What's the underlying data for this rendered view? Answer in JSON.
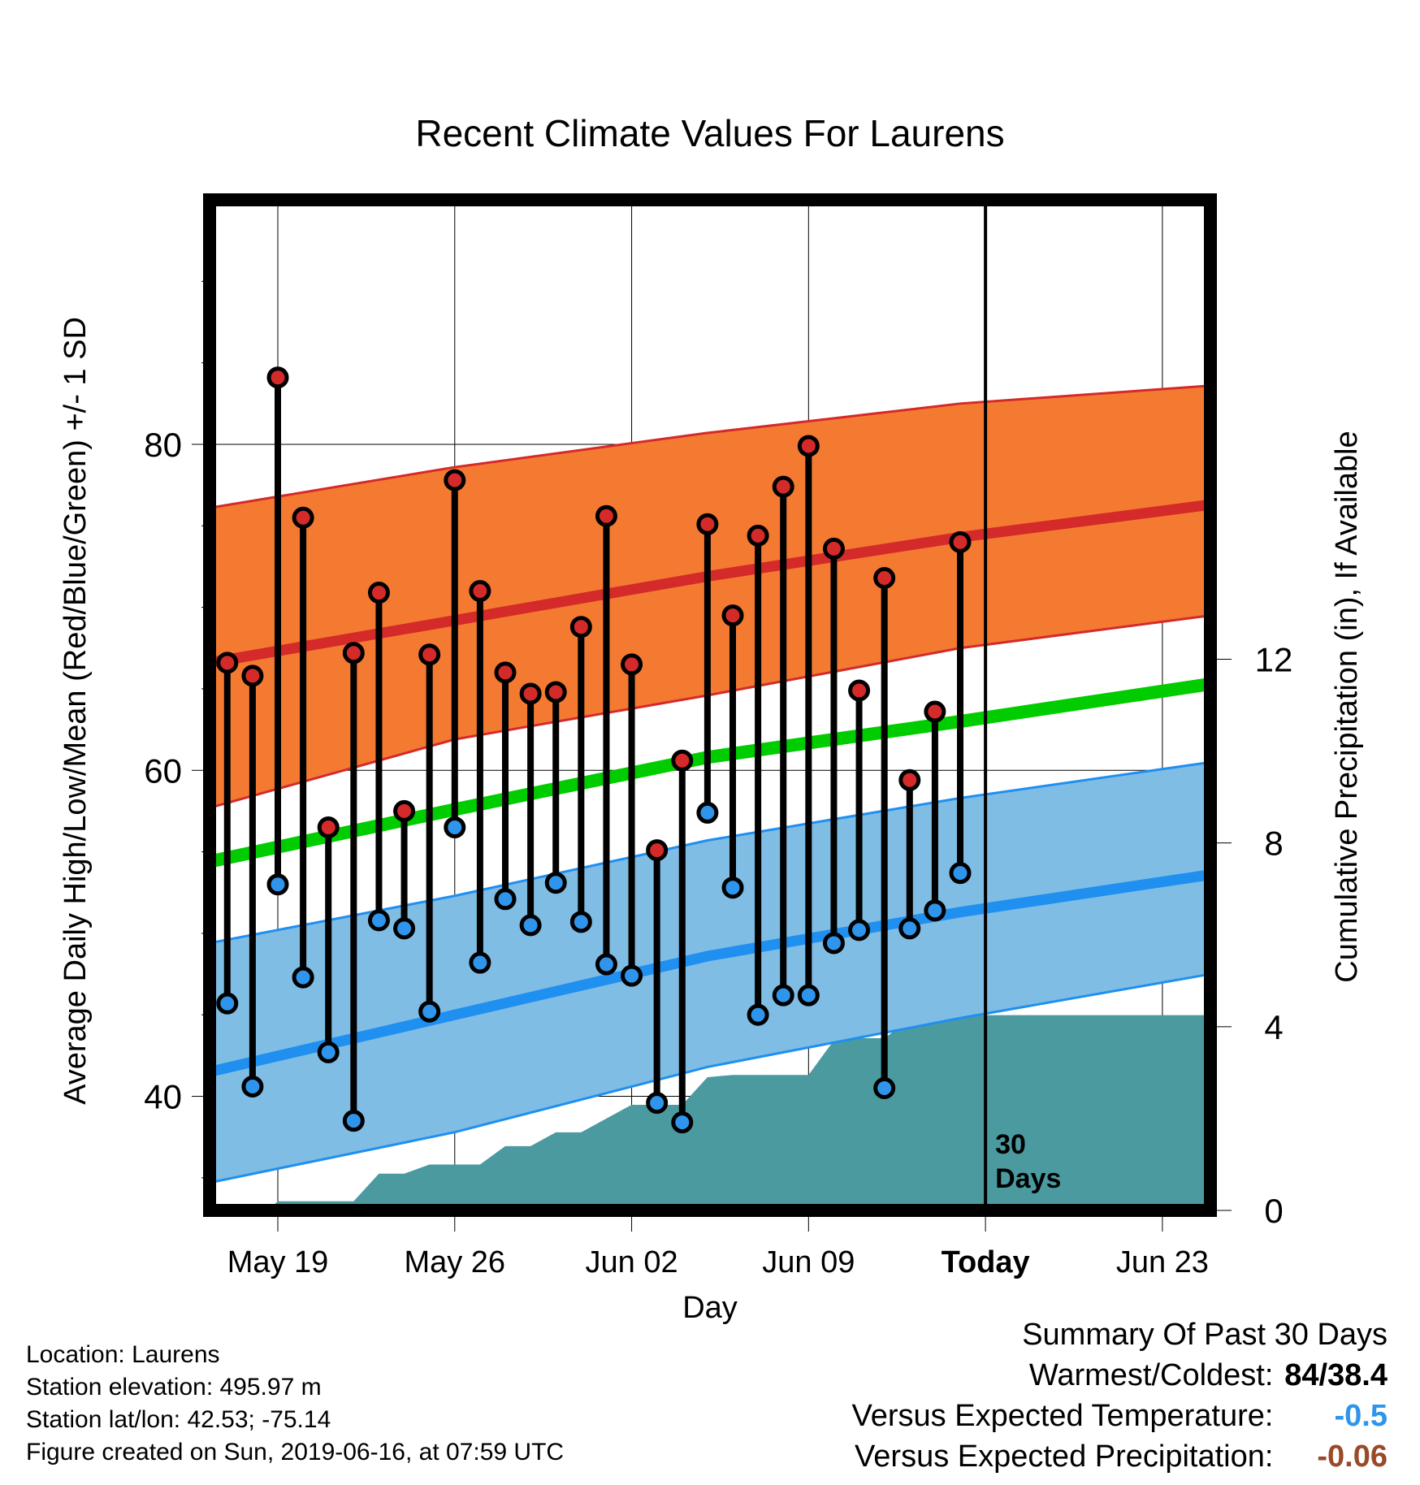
{
  "chart_data": {
    "type": "line",
    "title": "Recent Climate Values For Laurens",
    "xlabel": "Day",
    "ylabel_left": "Average Daily High/Low/Mean (Red/Blue/Green) +/- 1 SD",
    "ylabel_right": "Cumulative Precipitation (in), If Available",
    "x_ticks": [
      {
        "day": 2,
        "label": "May 19"
      },
      {
        "day": 9,
        "label": "May 26"
      },
      {
        "day": 16,
        "label": "Jun 02"
      },
      {
        "day": 23,
        "label": "Jun 09"
      },
      {
        "day": 30,
        "label": "Today"
      },
      {
        "day": 37,
        "label": "Jun 23"
      }
    ],
    "x_range_days": [
      -0.7,
      38.9
    ],
    "x_day_origin": "May 17",
    "ylim_temp": [
      33,
      95
    ],
    "y_ticks_temp": [
      40,
      60,
      80
    ],
    "ylim_precip": [
      0,
      22
    ],
    "y_ticks_precip": [
      0,
      4,
      8,
      12
    ],
    "today_line_day": 30,
    "today_annotation": [
      "30",
      "Days"
    ],
    "daily_obs": {
      "days": [
        0,
        1,
        2,
        3,
        4,
        5,
        6,
        7,
        8,
        9,
        10,
        11,
        12,
        13,
        14,
        15,
        16,
        17,
        18,
        19,
        20,
        21,
        22,
        23,
        24,
        25,
        26,
        27,
        28,
        29
      ],
      "high": [
        66.6,
        65.8,
        84.1,
        75.5,
        56.5,
        67.2,
        70.9,
        57.5,
        67.1,
        77.8,
        71.0,
        66.0,
        64.7,
        64.8,
        68.8,
        75.6,
        66.5,
        55.1,
        60.6,
        75.1,
        69.5,
        74.4,
        77.4,
        79.9,
        73.6,
        64.9,
        71.8,
        59.4,
        63.6,
        74.0
      ],
      "low": [
        45.7,
        40.6,
        53.0,
        47.3,
        42.7,
        38.5,
        50.8,
        50.3,
        45.2,
        56.5,
        48.2,
        52.1,
        50.5,
        53.1,
        50.7,
        48.1,
        47.4,
        39.6,
        38.4,
        57.4,
        52.8,
        45.0,
        46.2,
        46.2,
        49.4,
        50.2,
        40.5,
        50.3,
        51.4,
        53.7
      ]
    },
    "normals": {
      "days": [
        -0.7,
        9,
        19,
        29,
        38.9
      ],
      "high_mean": [
        66.6,
        69.2,
        71.9,
        74.3,
        76.3
      ],
      "high_sd_upper": [
        76.1,
        78.6,
        80.7,
        82.5,
        83.6
      ],
      "high_sd_lower": [
        57.7,
        61.9,
        64.6,
        67.5,
        69.5
      ],
      "low_mean": [
        41.5,
        45.0,
        48.6,
        51.3,
        53.6
      ],
      "low_sd_upper": [
        49.4,
        52.3,
        55.7,
        58.3,
        60.5
      ],
      "low_sd_lower": [
        34.7,
        37.8,
        41.8,
        44.8,
        47.5
      ],
      "mean": [
        54.4,
        57.6,
        60.8,
        63.0,
        65.3
      ]
    },
    "precip_cumulative": {
      "days": [
        -0.7,
        1.6,
        2.0,
        3.5,
        4.0,
        5.0,
        6.0,
        7.0,
        8.0,
        9.0,
        10.0,
        11.0,
        12.0,
        13.0,
        14.0,
        15.0,
        16.0,
        17.0,
        18.0,
        19.0,
        20.0,
        21.0,
        22.0,
        23.0,
        24.0,
        25.0,
        26.0,
        27.0,
        28.0,
        29.0,
        30.0,
        38.9
      ],
      "values": [
        0.0,
        0.0,
        0.2,
        0.2,
        0.2,
        0.2,
        0.8,
        0.8,
        1.0,
        1.0,
        1.0,
        1.4,
        1.4,
        1.7,
        1.7,
        2.0,
        2.3,
        2.3,
        2.3,
        2.9,
        2.95,
        2.95,
        2.95,
        2.95,
        3.7,
        3.75,
        3.75,
        4.15,
        4.15,
        4.25,
        4.25,
        4.25
      ]
    },
    "colors": {
      "high_band": "#f47a32",
      "high_line": "#d42a2a",
      "low_band": "#80bde4",
      "low_line": "#1f8ff0",
      "mean_line": "#00cc00",
      "precip": "#4a9aa0",
      "high_dot": "#d42a2a",
      "low_dot": "#2f95ec"
    },
    "grid": true
  },
  "footer": {
    "location": "Location: Laurens",
    "elevation": "Station elevation: 495.97 m",
    "latlon": "Station lat/lon: 42.53; -75.14",
    "created": "Figure created on Sun, 2019-06-16, at 07:59 UTC"
  },
  "summary": {
    "title": "Summary Of Past 30 Days",
    "warmest_label": "Warmest/Coldest:",
    "warmest_value": "84/38.4",
    "temp_label": "Versus Expected Temperature:",
    "temp_value": "-0.5",
    "temp_color": "#2f95ec",
    "precip_label": "Versus Expected Precipitation:",
    "precip_value": "-0.06",
    "precip_color": "#9a4a28"
  }
}
